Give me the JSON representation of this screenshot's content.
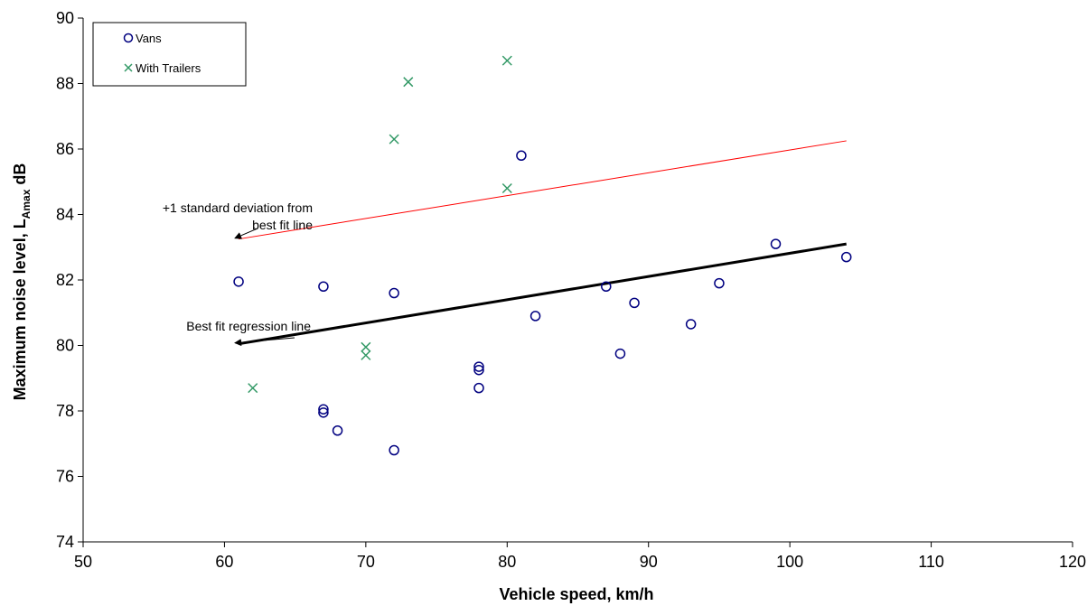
{
  "chart_data": {
    "type": "scatter",
    "xlabel": "Vehicle speed, km/h",
    "ylabel_prefix": "Maximum noise level, L",
    "ylabel_sub": "Amax",
    "ylabel_suffix": " dB",
    "xlim": [
      50,
      120
    ],
    "ylim": [
      74,
      90
    ],
    "x_ticks": [
      50,
      60,
      70,
      80,
      90,
      100,
      110,
      120
    ],
    "y_ticks": [
      74,
      76,
      78,
      80,
      82,
      84,
      86,
      88,
      90
    ],
    "grid": false,
    "legend_position": "top-left",
    "series": [
      {
        "name": "Vans",
        "marker": "circle",
        "color": "#000080",
        "points": [
          [
            61,
            81.95
          ],
          [
            67,
            81.8
          ],
          [
            67,
            78.05
          ],
          [
            67,
            77.95
          ],
          [
            68,
            77.4
          ],
          [
            72,
            81.6
          ],
          [
            72,
            76.8
          ],
          [
            78,
            79.35
          ],
          [
            78,
            79.25
          ],
          [
            78,
            78.7
          ],
          [
            81,
            85.8
          ],
          [
            82,
            80.9
          ],
          [
            87,
            81.8
          ],
          [
            88,
            79.75
          ],
          [
            89,
            81.3
          ],
          [
            93,
            80.65
          ],
          [
            95,
            81.9
          ],
          [
            99,
            83.1
          ],
          [
            104,
            82.7
          ]
        ]
      },
      {
        "name": "With Trailers",
        "marker": "x",
        "color": "#339966",
        "points": [
          [
            62,
            78.7
          ],
          [
            70,
            79.95
          ],
          [
            70,
            79.7
          ],
          [
            72,
            86.3
          ],
          [
            73,
            88.05
          ],
          [
            80,
            88.7
          ],
          [
            80,
            84.8
          ]
        ]
      }
    ],
    "lines": [
      {
        "name": "Best fit regression line",
        "color": "#000000",
        "width": 3,
        "points": [
          [
            61,
            80.05
          ],
          [
            104,
            83.1
          ]
        ]
      },
      {
        "name": "+1 standard deviation from best fit line",
        "color": "#ff0000",
        "width": 1,
        "points": [
          [
            61,
            83.25
          ],
          [
            104,
            86.25
          ]
        ]
      }
    ],
    "annotations": [
      {
        "lines": [
          "+1 standard deviation from",
          "best fit line"
        ],
        "arrow_to": [
          61,
          83.25
        ]
      },
      {
        "lines": [
          "Best fit regression line"
        ],
        "arrow_to": [
          61,
          80.05
        ]
      }
    ]
  }
}
